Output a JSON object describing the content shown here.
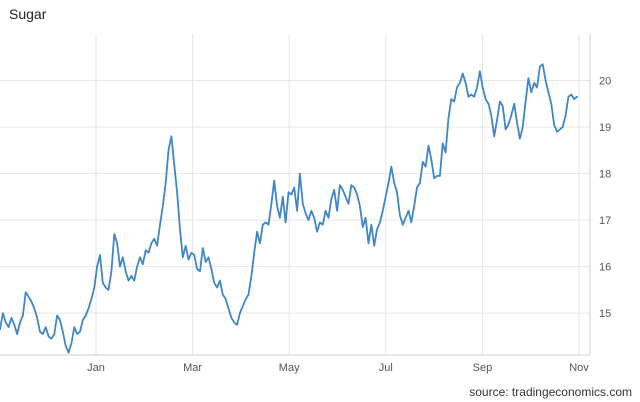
{
  "chart_data": {
    "type": "line",
    "title": "Sugar",
    "source": "source: tradingeconomics.com",
    "xlabel": "",
    "ylabel": "",
    "x_ticks": [
      "Jan",
      "Mar",
      "May",
      "Jul",
      "Sep",
      "Nov"
    ],
    "y_ticks": [
      15,
      16,
      17,
      18,
      19,
      20
    ],
    "ylim": [
      14.1,
      21.0
    ],
    "grid": true,
    "legend": "none",
    "colors": {
      "line": "#3f86c8",
      "grid": "#e6e6e6",
      "axis": "#cccccc"
    },
    "series": [
      {
        "values": [
          14.65,
          15.0,
          14.8,
          14.7,
          14.9,
          14.75,
          14.55,
          14.8,
          14.95,
          15.45,
          15.35,
          15.25,
          15.1,
          14.9,
          14.6,
          14.55,
          14.7,
          14.5,
          14.45,
          14.55,
          14.95,
          14.85,
          14.6,
          14.3,
          14.15,
          14.35,
          14.7,
          14.55,
          14.6,
          14.85,
          14.95,
          15.1,
          15.3,
          15.55,
          16.0,
          16.25,
          15.65,
          15.55,
          15.5,
          15.9,
          16.7,
          16.5,
          16.0,
          16.2,
          15.9,
          15.7,
          15.8,
          15.7,
          16.0,
          16.2,
          16.05,
          16.35,
          16.3,
          16.5,
          16.6,
          16.45,
          16.9,
          17.3,
          17.8,
          18.5,
          18.8,
          18.2,
          17.6,
          16.8,
          16.2,
          16.45,
          16.15,
          16.3,
          16.25,
          15.95,
          15.9,
          16.4,
          16.1,
          16.2,
          15.95,
          15.65,
          15.55,
          15.7,
          15.4,
          15.3,
          15.1,
          14.9,
          14.8,
          14.75,
          15.0,
          15.15,
          15.3,
          15.4,
          15.8,
          16.3,
          16.75,
          16.5,
          16.9,
          16.95,
          16.9,
          17.35,
          17.85,
          17.3,
          17.05,
          17.5,
          16.95,
          17.6,
          17.55,
          17.7,
          17.2,
          18.0,
          17.35,
          17.15,
          17.0,
          17.2,
          17.05,
          16.75,
          16.95,
          16.9,
          17.2,
          17.05,
          17.45,
          17.65,
          17.2,
          17.75,
          17.65,
          17.5,
          17.35,
          17.75,
          17.7,
          17.55,
          17.3,
          16.85,
          17.05,
          16.5,
          16.9,
          16.45,
          16.8,
          16.95,
          17.2,
          17.5,
          17.8,
          18.15,
          17.8,
          17.6,
          17.1,
          16.9,
          17.05,
          17.2,
          16.95,
          17.3,
          17.7,
          17.8,
          18.25,
          18.15,
          18.6,
          18.3,
          17.9,
          17.95,
          17.95,
          18.65,
          18.45,
          19.2,
          19.6,
          19.55,
          19.85,
          19.95,
          20.15,
          19.95,
          19.65,
          19.7,
          19.65,
          19.85,
          20.2,
          19.85,
          19.6,
          19.5,
          19.25,
          18.8,
          19.15,
          19.55,
          19.45,
          18.95,
          19.05,
          19.25,
          19.5,
          19.1,
          18.75,
          19.0,
          19.55,
          20.05,
          19.75,
          19.95,
          19.85,
          20.3,
          20.35,
          20.0,
          19.75,
          19.5,
          19.05,
          18.9,
          18.95,
          19.0,
          19.25,
          19.65,
          19.7,
          19.6,
          19.65
        ]
      }
    ]
  }
}
